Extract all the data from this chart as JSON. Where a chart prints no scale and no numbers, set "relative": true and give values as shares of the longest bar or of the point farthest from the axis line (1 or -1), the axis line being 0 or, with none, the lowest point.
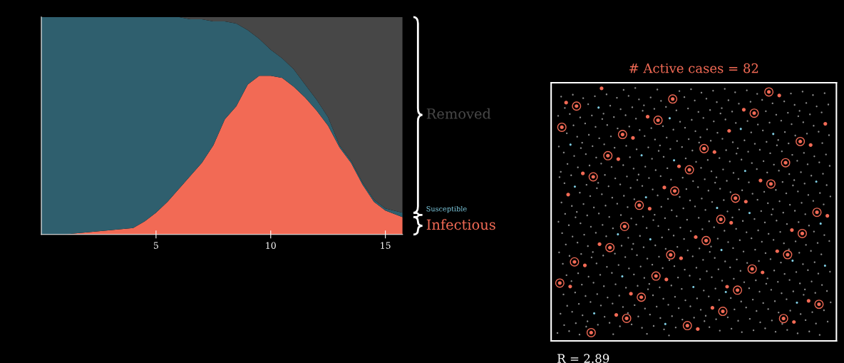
{
  "chart_data": [
    {
      "type": "area",
      "stacked": true,
      "relative": true,
      "tick_labels": "x",
      "xlim": [
        0,
        15.75
      ],
      "xticks": [
        5,
        10,
        15
      ],
      "x": [
        0,
        1,
        2,
        3,
        4,
        4.5,
        5,
        5.5,
        6,
        6.5,
        7,
        7.5,
        8,
        8.5,
        9,
        9.5,
        10,
        10.5,
        11,
        11.5,
        12,
        12.5,
        13,
        13.5,
        14,
        14.5,
        15,
        15.75
      ],
      "series": [
        {
          "name": "Infectious",
          "color": "#f26a55",
          "values": [
            0,
            0,
            0.01,
            0.02,
            0.03,
            0.06,
            0.1,
            0.15,
            0.21,
            0.27,
            0.33,
            0.41,
            0.53,
            0.59,
            0.69,
            0.73,
            0.73,
            0.72,
            0.68,
            0.63,
            0.57,
            0.5,
            0.4,
            0.33,
            0.23,
            0.15,
            0.11,
            0.08
          ]
        },
        {
          "name": "Susceptible",
          "color": "#2f5f6e",
          "values": [
            1,
            1,
            0.99,
            0.98,
            0.97,
            0.94,
            0.9,
            0.85,
            0.79,
            0.72,
            0.66,
            0.57,
            0.45,
            0.38,
            0.25,
            0.17,
            0.12,
            0.09,
            0.08,
            0.06,
            0.05,
            0.04,
            0.01,
            0.01,
            0.01,
            0.01,
            0.01,
            0.02
          ]
        },
        {
          "name": "Removed",
          "color": "#474747",
          "values": [
            0,
            0,
            0,
            0,
            0,
            0,
            0,
            0,
            0,
            0.01,
            0.01,
            0.02,
            0.02,
            0.03,
            0.06,
            0.1,
            0.15,
            0.19,
            0.24,
            0.31,
            0.38,
            0.46,
            0.59,
            0.66,
            0.76,
            0.84,
            0.88,
            0.9
          ]
        }
      ]
    },
    {
      "type": "other",
      "title": "# Active cases = 82",
      "annotations": [
        "R = 2.89"
      ]
    }
  ]
}
